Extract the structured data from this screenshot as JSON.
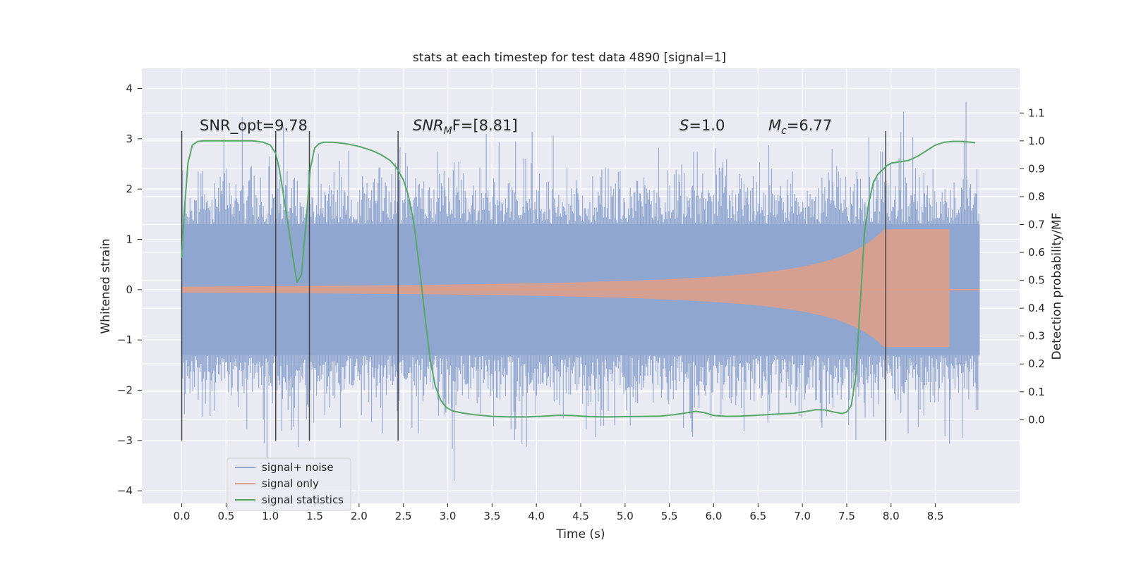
{
  "chart_data": {
    "type": "line",
    "title": "stats at each timestep for test data 4890 [signal=1]",
    "xlabel": "Time (s)",
    "ylabel": "Whitened strain",
    "ylabel_right": "Detection probability/MF",
    "xlim": [
      -0.45,
      9.45
    ],
    "ylim": [
      -4.25,
      4.4
    ],
    "ylim_right": [
      -0.3,
      1.26
    ],
    "x_ticks": [
      0.0,
      0.5,
      1.0,
      1.5,
      2.0,
      2.5,
      3.0,
      3.5,
      4.0,
      4.5,
      5.0,
      5.5,
      6.0,
      6.5,
      7.0,
      7.5,
      8.0,
      8.5
    ],
    "x_tick_labels": [
      "0.0",
      "0.5",
      "1.0",
      "1.5",
      "2.0",
      "2.5",
      "3.0",
      "3.5",
      "4.0",
      "4.5",
      "5.0",
      "5.5",
      "6.0",
      "6.5",
      "7.0",
      "7.5",
      "8.0",
      "8.5"
    ],
    "y_ticks": [
      4,
      3,
      2,
      1,
      0,
      -1,
      -2,
      -3,
      -4
    ],
    "y_tick_labels": [
      "4",
      "3",
      "2",
      "1",
      "0",
      "−1",
      "−2",
      "−3",
      "−4"
    ],
    "y_right_ticks": [
      1.1,
      1.0,
      0.9,
      0.8,
      0.7,
      0.6,
      0.5,
      0.4,
      0.3,
      0.2,
      0.1,
      0.0
    ],
    "y_right_tick_labels": [
      "1.1",
      "1.0",
      "0.9",
      "0.8",
      "0.7",
      "0.6",
      "0.5",
      "0.4",
      "0.3",
      "0.2",
      "0.1",
      "0.0"
    ],
    "grid": true,
    "legend_position": "lower-left",
    "annotations": {
      "snr_opt": "SNR_opt=9.78",
      "snr_mf_main": "SNR",
      "snr_mf_sub": "M",
      "snr_mf_rest": "F=[8.81]",
      "s_main": "S",
      "s_rest": "=1.0",
      "mc_main": "M",
      "mc_sub": "c",
      "mc_rest": "=6.77"
    },
    "vertical_markers_x": [
      0.0,
      1.06,
      1.44,
      2.44,
      7.94
    ],
    "vertical_marker_range_y": [
      -3.0,
      3.15
    ],
    "series": [
      {
        "name": "signal+ noise",
        "color": "#8fa6d0",
        "kind": "noise",
        "x_range": [
          0.0,
          9.0
        ],
        "band_amplitude": 1.3,
        "spike_max": 4.0,
        "spike_min": -3.8
      },
      {
        "name": "signal only",
        "color": "#dd9e8a",
        "kind": "chirp",
        "x_range": [
          0.0,
          8.68
        ],
        "peak_x": 8.66,
        "peak_amplitude": 1.2,
        "end_x": 9.0
      },
      {
        "name": "signal statistics",
        "color": "#55a868",
        "kind": "line",
        "axis": "right",
        "x": [
          0.0,
          0.03,
          0.07,
          0.12,
          0.18,
          0.25,
          0.35,
          0.5,
          0.65,
          0.8,
          0.92,
          1.0,
          1.06,
          1.1,
          1.15,
          1.2,
          1.25,
          1.3,
          1.35,
          1.4,
          1.45,
          1.5,
          1.55,
          1.6,
          1.7,
          1.85,
          2.0,
          2.15,
          2.25,
          2.35,
          2.42,
          2.5,
          2.56,
          2.62,
          2.68,
          2.74,
          2.8,
          2.86,
          2.92,
          2.98,
          3.05,
          3.15,
          3.3,
          3.5,
          3.7,
          3.9,
          4.1,
          4.25,
          4.4,
          4.6,
          4.8,
          5.0,
          5.2,
          5.4,
          5.55,
          5.68,
          5.8,
          5.9,
          6.0,
          6.15,
          6.3,
          6.5,
          6.7,
          6.9,
          7.05,
          7.15,
          7.25,
          7.35,
          7.45,
          7.5,
          7.55,
          7.6,
          7.65,
          7.7,
          7.75,
          7.8,
          7.85,
          7.9,
          7.95,
          8.0,
          8.1,
          8.2,
          8.3,
          8.4,
          8.5,
          8.6,
          8.7,
          8.8,
          8.9,
          8.95
        ],
        "y": [
          0.58,
          0.75,
          0.92,
          0.985,
          0.998,
          1.0,
          1.0,
          1.0,
          1.0,
          1.0,
          0.995,
          0.985,
          0.955,
          0.9,
          0.8,
          0.7,
          0.59,
          0.493,
          0.52,
          0.7,
          0.9,
          0.975,
          0.99,
          0.995,
          0.995,
          0.99,
          0.98,
          0.965,
          0.95,
          0.93,
          0.905,
          0.86,
          0.8,
          0.7,
          0.55,
          0.38,
          0.22,
          0.12,
          0.07,
          0.045,
          0.032,
          0.025,
          0.018,
          0.012,
          0.01,
          0.01,
          0.013,
          0.016,
          0.015,
          0.011,
          0.01,
          0.011,
          0.012,
          0.013,
          0.018,
          0.024,
          0.03,
          0.025,
          0.015,
          0.012,
          0.013,
          0.016,
          0.02,
          0.023,
          0.03,
          0.036,
          0.035,
          0.028,
          0.022,
          0.028,
          0.05,
          0.15,
          0.4,
          0.67,
          0.78,
          0.85,
          0.88,
          0.895,
          0.91,
          0.92,
          0.925,
          0.93,
          0.945,
          0.965,
          0.985,
          0.995,
          0.998,
          0.998,
          0.995,
          0.993
        ]
      }
    ]
  }
}
